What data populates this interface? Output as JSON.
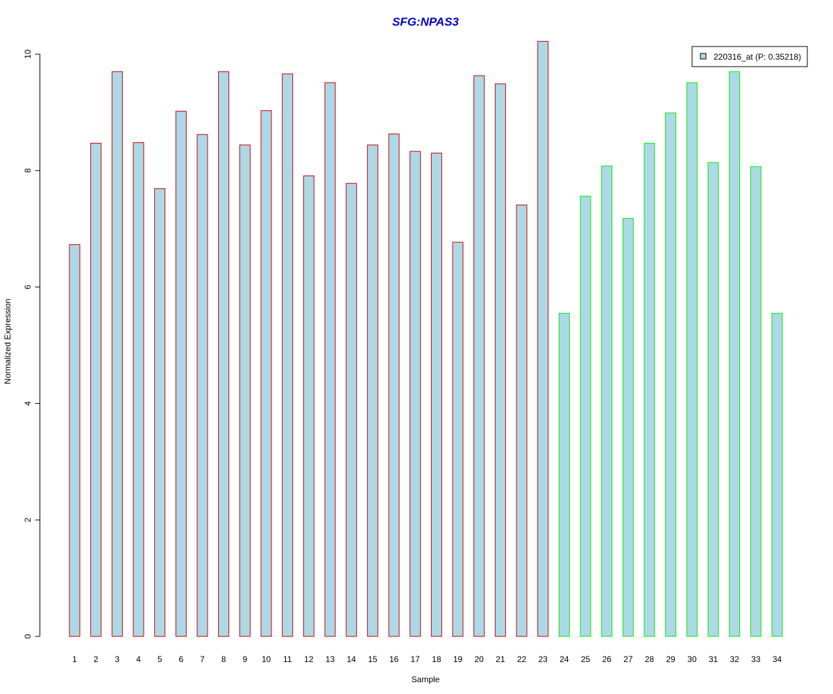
{
  "chart_data": {
    "type": "bar",
    "title": "SFG:NPAS3",
    "xlabel": "Sample",
    "ylabel": "Normalized Expression",
    "ylim": [
      0,
      10.3
    ],
    "yticks": [
      0,
      2,
      4,
      6,
      8,
      10
    ],
    "grid": false,
    "legend_position": "top-right",
    "categories": [
      "1",
      "2",
      "3",
      "4",
      "5",
      "6",
      "7",
      "8",
      "9",
      "10",
      "11",
      "12",
      "13",
      "14",
      "15",
      "16",
      "17",
      "18",
      "19",
      "20",
      "21",
      "22",
      "23",
      "24",
      "25",
      "26",
      "27",
      "28",
      "29",
      "30",
      "31",
      "32",
      "33",
      "34"
    ],
    "series": [
      {
        "name": "220316_at (P: 0.35218)",
        "values": [
          6.73,
          8.47,
          9.7,
          8.48,
          7.69,
          9.02,
          8.62,
          9.7,
          8.44,
          9.03,
          9.66,
          7.91,
          9.51,
          7.78,
          8.44,
          8.63,
          8.33,
          8.3,
          6.77,
          9.63,
          9.49,
          7.41,
          10.22,
          5.55,
          7.56,
          8.08,
          7.18,
          8.47,
          8.99,
          9.51,
          8.14,
          9.7,
          8.07,
          5.55
        ]
      }
    ],
    "groups": [
      {
        "samples": [
          1,
          23
        ],
        "border_color": "#cc0000"
      },
      {
        "samples": [
          24,
          34
        ],
        "border_color": "#00ee00"
      }
    ]
  },
  "colors": {
    "bar_fill": "#add8e6",
    "title": "#0000cc",
    "axis": "#000000"
  }
}
